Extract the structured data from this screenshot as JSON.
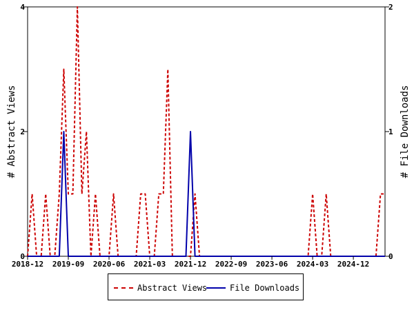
{
  "chart_data": {
    "type": "line",
    "x_tick_labels": [
      "2018-12",
      "2019-09",
      "2020-06",
      "2021-03",
      "2021-12",
      "2022-09",
      "2023-06",
      "2024-03",
      "2024-12"
    ],
    "x": [
      "2018-12",
      "2019-01",
      "2019-02",
      "2019-03",
      "2019-04",
      "2019-05",
      "2019-06",
      "2019-07",
      "2019-08",
      "2019-09",
      "2019-10",
      "2019-11",
      "2019-12",
      "2020-01",
      "2020-02",
      "2020-03",
      "2020-04",
      "2020-05",
      "2020-06",
      "2020-07",
      "2020-08",
      "2020-09",
      "2020-10",
      "2020-11",
      "2020-12",
      "2021-01",
      "2021-02",
      "2021-03",
      "2021-04",
      "2021-05",
      "2021-06",
      "2021-07",
      "2021-08",
      "2021-09",
      "2021-10",
      "2021-11",
      "2021-12",
      "2022-01",
      "2022-02",
      "2022-03",
      "2022-04",
      "2022-05",
      "2022-06",
      "2022-07",
      "2022-08",
      "2022-09",
      "2022-10",
      "2022-11",
      "2022-12",
      "2023-01",
      "2023-02",
      "2023-03",
      "2023-04",
      "2023-05",
      "2023-06",
      "2023-07",
      "2023-08",
      "2023-09",
      "2023-10",
      "2023-11",
      "2023-12",
      "2024-01",
      "2024-02",
      "2024-03",
      "2024-04",
      "2024-05",
      "2024-06",
      "2024-07",
      "2024-08",
      "2024-09",
      "2024-10",
      "2024-11",
      "2024-12",
      "2025-01",
      "2025-02",
      "2025-03",
      "2025-04",
      "2025-05",
      "2025-06",
      "2025-07"
    ],
    "series": [
      {
        "name": "Abstract Views",
        "axis": "left",
        "color": "#cc0000",
        "style": "dashed",
        "values": [
          0,
          1,
          0,
          0,
          1,
          0,
          0,
          1,
          3,
          1,
          1,
          4,
          1,
          2,
          0,
          1,
          0,
          0,
          0,
          1,
          0,
          0,
          0,
          0,
          0,
          1,
          1,
          0,
          0,
          1,
          1,
          3,
          0,
          0,
          0,
          0,
          0,
          1,
          0,
          0,
          0,
          0,
          0,
          0,
          0,
          0,
          0,
          0,
          0,
          0,
          0,
          0,
          0,
          0,
          0,
          0,
          0,
          0,
          0,
          0,
          0,
          0,
          0,
          1,
          0,
          0,
          1,
          0,
          0,
          0,
          0,
          0,
          0,
          0,
          0,
          0,
          0,
          0,
          1,
          1
        ]
      },
      {
        "name": "File Downloads",
        "axis": "right",
        "color": "#0000aa",
        "style": "solid",
        "values": [
          0,
          0,
          0,
          0,
          0,
          0,
          0,
          0,
          1,
          0,
          0,
          0,
          0,
          0,
          0,
          0,
          0,
          0,
          0,
          0,
          0,
          0,
          0,
          0,
          0,
          0,
          0,
          0,
          0,
          0,
          0,
          0,
          0,
          0,
          0,
          0,
          1,
          0,
          0,
          0,
          0,
          0,
          0,
          0,
          0,
          0,
          0,
          0,
          0,
          0,
          0,
          0,
          0,
          0,
          0,
          0,
          0,
          0,
          0,
          0,
          0,
          0,
          0,
          0,
          0,
          0,
          0,
          0,
          0,
          0,
          0,
          0,
          0,
          0,
          0,
          0,
          0,
          0,
          0,
          0
        ]
      }
    ],
    "y_left": {
      "label": "# Abstract Views",
      "ticks": [
        0,
        2,
        4
      ],
      "range": [
        0,
        4
      ]
    },
    "y_right": {
      "label": "# File Downloads",
      "ticks": [
        0,
        1,
        2
      ],
      "range": [
        0,
        2
      ]
    },
    "legend_position": "bottom",
    "grid": false
  }
}
